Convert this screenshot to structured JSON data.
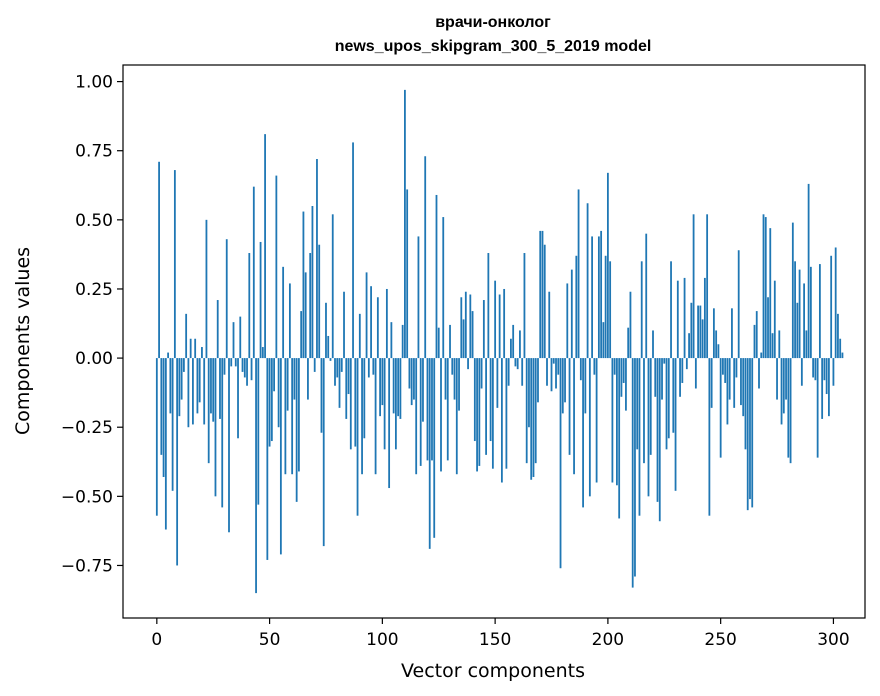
{
  "chart_data": {
    "type": "bar",
    "title": "врачи-онколог",
    "subtitle": "news_upos_skipgram_300_5_2019 model",
    "xlabel": "Vector components",
    "ylabel": "Components values",
    "xlim": [
      -15,
      314
    ],
    "ylim": [
      -0.94,
      1.06
    ],
    "xticks": [
      0,
      50,
      100,
      150,
      200,
      250,
      300
    ],
    "xtick_labels": [
      "0",
      "50",
      "100",
      "150",
      "200",
      "250",
      "300"
    ],
    "yticks": [
      1.0,
      0.75,
      0.5,
      0.25,
      0.0,
      -0.25,
      -0.5,
      -0.75
    ],
    "ytick_labels": [
      "1.00",
      "0.75",
      "0.50",
      "0.25",
      "0.00",
      "−0.25",
      "−0.50",
      "−0.75"
    ],
    "bar_color": "#1f77b4",
    "grid": false,
    "series": [
      {
        "name": "components",
        "values": [
          -0.57,
          0.71,
          -0.35,
          -0.43,
          -0.62,
          0.02,
          -0.2,
          -0.48,
          0.68,
          -0.75,
          -0.21,
          -0.15,
          -0.05,
          0.16,
          -0.25,
          0.07,
          -0.24,
          0.07,
          -0.2,
          -0.16,
          0.04,
          -0.24,
          0.5,
          -0.38,
          -0.2,
          -0.23,
          -0.5,
          0.21,
          -0.22,
          -0.54,
          -0.06,
          0.43,
          -0.63,
          -0.03,
          0.13,
          -0.03,
          -0.29,
          0.15,
          -0.05,
          -0.07,
          -0.1,
          0.38,
          -0.08,
          0.62,
          -0.85,
          -0.53,
          0.42,
          0.04,
          0.81,
          -0.73,
          -0.32,
          -0.3,
          -0.12,
          0.66,
          -0.25,
          -0.71,
          0.33,
          -0.42,
          -0.19,
          0.27,
          -0.42,
          -0.15,
          -0.52,
          -0.41,
          0.17,
          0.53,
          0.31,
          -0.15,
          0.38,
          0.55,
          -0.05,
          0.72,
          0.41,
          -0.27,
          -0.68,
          0.2,
          0.08,
          -0.01,
          0.52,
          -0.1,
          -0.07,
          -0.18,
          -0.05,
          0.24,
          -0.22,
          -0.13,
          -0.33,
          0.78,
          -0.32,
          -0.57,
          0.16,
          -0.42,
          -0.29,
          0.31,
          -0.07,
          0.26,
          -0.06,
          -0.42,
          0.22,
          -0.21,
          -0.17,
          -0.33,
          0.25,
          -0.47,
          0.13,
          -0.2,
          -0.33,
          -0.21,
          -0.22,
          0.12,
          0.97,
          0.61,
          -0.11,
          -0.17,
          -0.15,
          -0.42,
          0.44,
          -0.39,
          -0.23,
          0.73,
          -0.37,
          -0.69,
          -0.37,
          -0.65,
          0.59,
          0.11,
          -0.41,
          0.51,
          -0.15,
          -0.37,
          0.12,
          -0.06,
          -0.15,
          -0.42,
          -0.19,
          0.22,
          0.14,
          0.24,
          -0.04,
          0.23,
          0.17,
          -0.3,
          -0.41,
          -0.39,
          -0.11,
          0.21,
          -0.35,
          0.38,
          -0.3,
          -0.4,
          0.28,
          -0.18,
          0.23,
          -0.45,
          0.25,
          -0.4,
          -0.1,
          0.07,
          0.12,
          -0.03,
          -0.04,
          0.1,
          -0.1,
          0.38,
          -0.38,
          -0.25,
          -0.44,
          -0.43,
          -0.38,
          -0.16,
          0.46,
          0.46,
          0.41,
          -0.1,
          0.24,
          -0.12,
          -0.02,
          -0.11,
          -0.06,
          -0.76,
          -0.2,
          -0.16,
          0.27,
          -0.35,
          0.32,
          -0.42,
          0.37,
          0.61,
          -0.08,
          -0.54,
          -0.2,
          0.56,
          -0.5,
          0.44,
          -0.06,
          -0.45,
          0.44,
          0.46,
          0.13,
          0.37,
          0.67,
          0.35,
          -0.45,
          -0.06,
          -0.46,
          -0.58,
          -0.14,
          -0.09,
          -0.19,
          0.11,
          0.24,
          -0.83,
          -0.79,
          -0.33,
          -0.57,
          0.35,
          -0.38,
          0.45,
          -0.5,
          -0.35,
          0.1,
          -0.14,
          -0.52,
          -0.59,
          -0.15,
          -0.02,
          -0.33,
          -0.29,
          0.35,
          -0.27,
          -0.48,
          0.28,
          -0.14,
          -0.09,
          0.29,
          -0.04,
          0.09,
          0.2,
          0.52,
          -0.11,
          0.19,
          0.19,
          0.14,
          0.29,
          0.52,
          -0.57,
          -0.18,
          0.18,
          0.1,
          0.05,
          -0.36,
          -0.06,
          -0.09,
          -0.24,
          -0.15,
          0.18,
          -0.18,
          -0.07,
          0.39,
          -0.17,
          -0.21,
          -0.33,
          -0.55,
          -0.51,
          -0.54,
          0.12,
          0.17,
          -0.11,
          0.02,
          0.52,
          0.51,
          0.22,
          0.47,
          0.09,
          0.28,
          -0.15,
          0.1,
          -0.24,
          -0.2,
          -0.15,
          -0.36,
          -0.38,
          0.49,
          0.35,
          0.2,
          0.32,
          -0.1,
          0.27,
          0.1,
          0.63,
          0.33,
          -0.07,
          -0.08,
          -0.36,
          0.34,
          -0.22,
          -0.08,
          -0.13,
          -0.21,
          0.37,
          -0.1,
          0.4,
          0.16,
          0.07,
          0.02
        ]
      }
    ]
  }
}
